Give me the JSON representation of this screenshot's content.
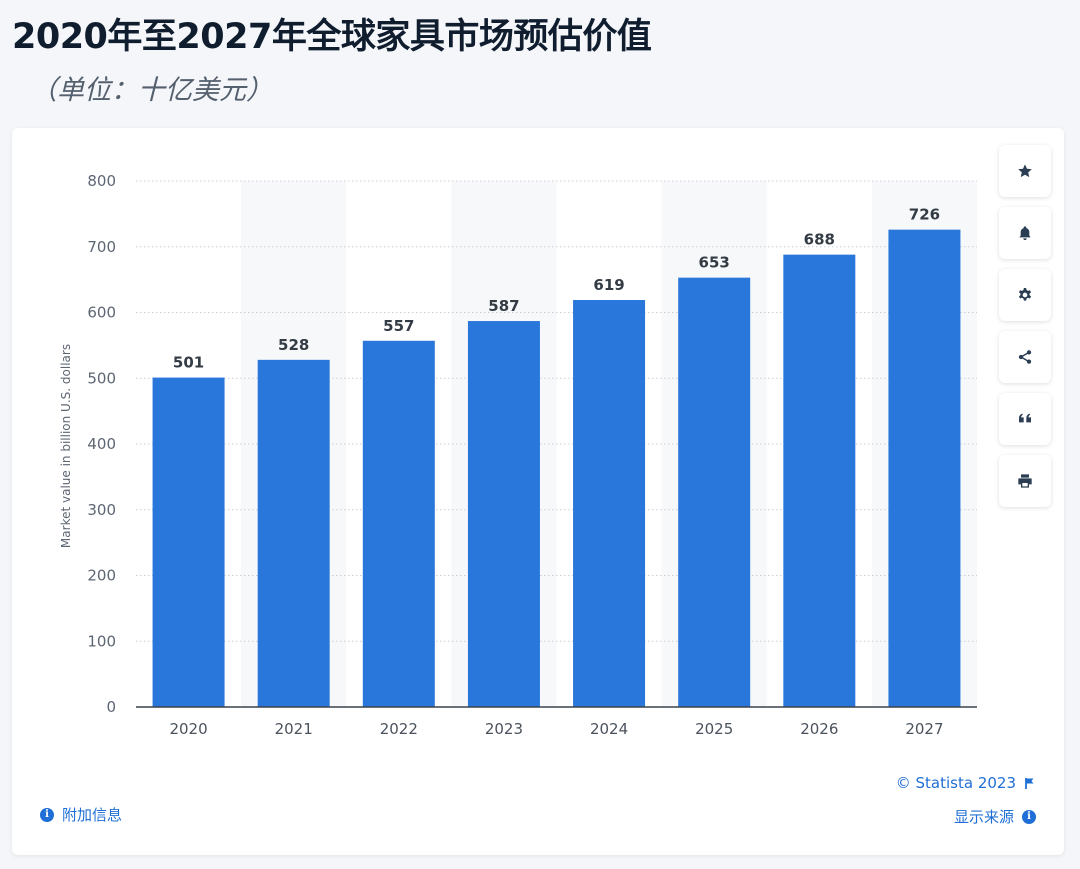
{
  "page": {
    "title": "2020年至2027年全球家具市场预估价值",
    "subtitle": "（单位：十亿美元）"
  },
  "chart_data": {
    "type": "bar",
    "categories": [
      "2020",
      "2021",
      "2022",
      "2023",
      "2024",
      "2025",
      "2026",
      "2027"
    ],
    "values": [
      501,
      528,
      557,
      587,
      619,
      653,
      688,
      726
    ],
    "ylabel": "Market value in billion U.S. dollars",
    "ylim": [
      0,
      800
    ],
    "yticks": [
      0,
      100,
      200,
      300,
      400,
      500,
      600,
      700,
      800
    ],
    "grid": true,
    "bar_color": "#2a77dc"
  },
  "tools": [
    {
      "name": "favorite",
      "icon": "star-icon"
    },
    {
      "name": "notification",
      "icon": "bell-icon"
    },
    {
      "name": "settings",
      "icon": "gear-icon"
    },
    {
      "name": "share",
      "icon": "share-icon"
    },
    {
      "name": "cite",
      "icon": "quote-icon"
    },
    {
      "name": "print",
      "icon": "printer-icon"
    }
  ],
  "footer": {
    "info_label": "附加信息",
    "copyright": "© Statista 2023",
    "source_label": "显示来源"
  },
  "colors": {
    "accent": "#1f6fd6",
    "bar": "#2a77dc",
    "title": "#0f1d2e"
  }
}
